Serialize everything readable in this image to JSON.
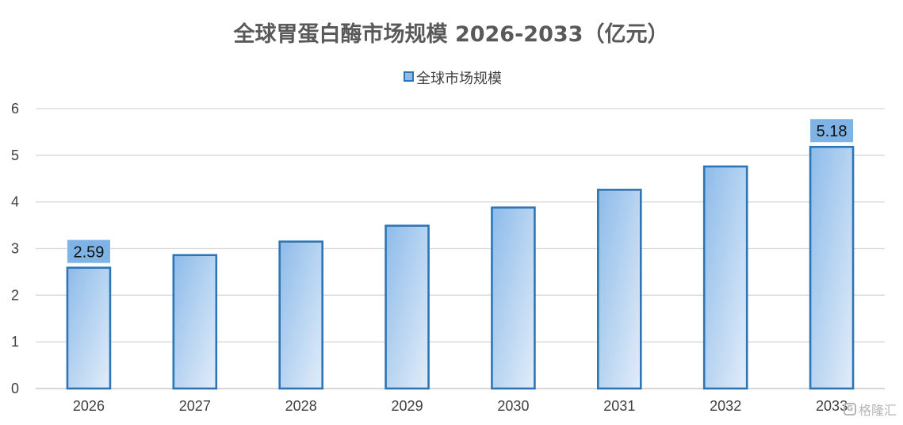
{
  "chart_data": {
    "type": "bar",
    "title": "全球胃蛋白酶市场规模 2026-2033（亿元）",
    "xlabel": "",
    "ylabel": "",
    "categories": [
      "2026",
      "2027",
      "2028",
      "2029",
      "2030",
      "2031",
      "2032",
      "2033"
    ],
    "series": [
      {
        "name": "全球市场规模",
        "values": [
          2.59,
          2.86,
          3.15,
          3.49,
          3.88,
          4.26,
          4.76,
          5.18
        ]
      }
    ],
    "data_labels": [
      {
        "category": "2026",
        "text": "2.59"
      },
      {
        "category": "2033",
        "text": "5.18"
      }
    ],
    "ylim": [
      0,
      6
    ],
    "yticks": [
      "0",
      "1",
      "2",
      "3",
      "4",
      "5",
      "6"
    ],
    "grid": true,
    "legend_position": "top",
    "colors": {
      "bar_gradient_start": "#8dbbea",
      "bar_gradient_end": "#e2edf9",
      "bar_border": "#2e75b6",
      "label_background": "#7fb3e6",
      "gridline": "#d9d9d9"
    }
  },
  "watermark": {
    "logo_icon": "gelonghui-logo-icon",
    "text": "格隆汇"
  }
}
